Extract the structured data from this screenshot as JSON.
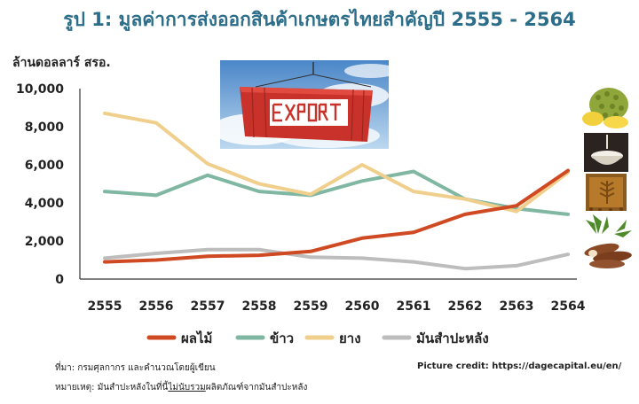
{
  "title": "รูป 1: มูลค่าการส่งออกสินค้าเกษตรไทยสำคัญปี 2555 - 2564",
  "unit_label": "ล้านดอลลาร์ สรอ.",
  "colors": {
    "fruit": "#cf4a22",
    "rice": "#7fb7a3",
    "rubber": "#f0cf8c",
    "cassava": "#bdbdbd",
    "axis": "#333333"
  },
  "icons": [
    "export-container-photo",
    "durian-icon",
    "rice-bowl-icon",
    "rubber-sheet-icon",
    "cassava-icon"
  ],
  "source_text": "ที่มา: กรมศุลกากร และคำนวณโดยผู้เขียน",
  "credit_text": "Picture credit: https://dagecapital.eu/en/",
  "note_prefix": "หมายเหตุ: มันสำปะหลังในที่นี้",
  "note_underline": "ไม่นับรวม",
  "note_suffix": "ผลิตภัณฑ์จากมันสำปะหลัง",
  "chart_data": {
    "type": "line",
    "title": "รูป 1: มูลค่าการส่งออกสินค้าเกษตรไทยสำคัญปี 2555 - 2564",
    "ylabel": "ล้านดอลลาร์ สรอ.",
    "xlabel": "",
    "x": [
      "2555",
      "2556",
      "2557",
      "2558",
      "2559",
      "2560",
      "2561",
      "2562",
      "2563",
      "2564"
    ],
    "ylim": [
      0,
      10000
    ],
    "yticks": [
      "0",
      "2,000",
      "4,000",
      "6,000",
      "8,000",
      "10,000"
    ],
    "ytick_values": [
      0,
      2000,
      4000,
      6000,
      8000,
      10000
    ],
    "grid": false,
    "legend_position": "bottom",
    "series": [
      {
        "name": "ผลไม้",
        "color_key": "fruit",
        "values": [
          900,
          1000,
          1200,
          1250,
          1450,
          2150,
          2450,
          3400,
          3850,
          5700
        ]
      },
      {
        "name": "ข้าว",
        "color_key": "rice",
        "values": [
          4600,
          4400,
          5450,
          4600,
          4400,
          5150,
          5650,
          4200,
          3700,
          3400
        ]
      },
      {
        "name": "ยาง",
        "color_key": "rubber",
        "values": [
          8700,
          8200,
          6050,
          5000,
          4450,
          6000,
          4600,
          4200,
          3550,
          5600
        ]
      },
      {
        "name": "มันสำปะหลัง",
        "color_key": "cassava",
        "values": [
          1100,
          1350,
          1550,
          1550,
          1150,
          1100,
          900,
          550,
          700,
          1300
        ]
      }
    ]
  }
}
